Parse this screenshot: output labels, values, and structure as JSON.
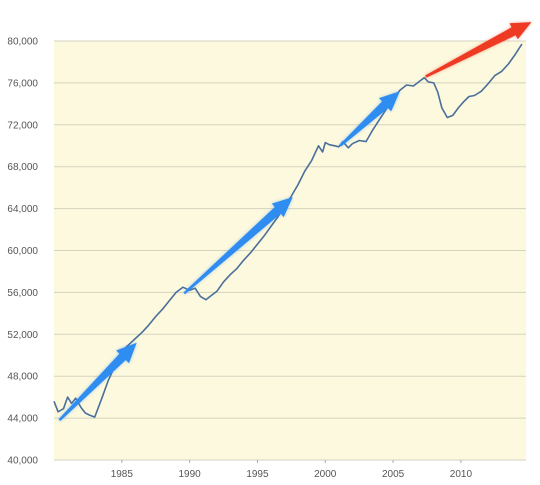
{
  "chart_data": {
    "type": "line",
    "title": "",
    "xlabel": "",
    "ylabel": "",
    "xlim": [
      1980.0,
      2014.8
    ],
    "ylim": [
      40000,
      80000
    ],
    "grid": true,
    "x_tick_labels": [
      "1985",
      "1990",
      "1995",
      "2000",
      "2005",
      "2010"
    ],
    "y_tick_labels": [
      "40,000",
      "44,000",
      "48,000",
      "52,000",
      "56,000",
      "60,000",
      "64,000",
      "68,000",
      "72,000",
      "76,000",
      "80,000"
    ],
    "series": [
      {
        "name": "",
        "x": [
          1980.0,
          1980.3,
          1980.7,
          1981.0,
          1981.3,
          1981.6,
          1982.0,
          1982.3,
          1982.6,
          1983.0,
          1983.5,
          1984.0,
          1984.5,
          1985.0,
          1985.5,
          1986.0,
          1986.5,
          1987.0,
          1987.5,
          1988.0,
          1988.5,
          1989.0,
          1989.5,
          1990.0,
          1990.4,
          1990.8,
          1991.2,
          1991.6,
          1992.0,
          1992.5,
          1993.0,
          1993.5,
          1994.0,
          1994.5,
          1995.0,
          1995.5,
          1996.0,
          1996.5,
          1997.0,
          1997.5,
          1998.0,
          1998.5,
          1999.0,
          1999.5,
          1999.8,
          2000.0,
          2000.3,
          2000.7,
          2001.0,
          2001.3,
          2001.7,
          2002.0,
          2002.5,
          2003.0,
          2003.5,
          2004.0,
          2004.5,
          2005.0,
          2005.5,
          2006.0,
          2006.5,
          2007.0,
          2007.3,
          2007.6,
          2008.0,
          2008.3,
          2008.6,
          2009.0,
          2009.4,
          2009.8,
          2010.2,
          2010.6,
          2011.0,
          2011.5,
          2012.0,
          2012.5,
          2013.0,
          2013.5,
          2014.0,
          2014.5
        ],
        "y": [
          45600,
          44600,
          44900,
          46000,
          45400,
          45900,
          45000,
          44500,
          44300,
          44100,
          45800,
          47600,
          49000,
          50400,
          51000,
          51600,
          52200,
          52900,
          53700,
          54400,
          55200,
          56000,
          56500,
          56200,
          56400,
          55600,
          55300,
          55700,
          56100,
          57000,
          57700,
          58300,
          59100,
          59800,
          60600,
          61400,
          62300,
          63200,
          64200,
          65200,
          66300,
          67600,
          68600,
          70000,
          69400,
          70300,
          70100,
          70000,
          69900,
          70400,
          69800,
          70200,
          70500,
          70400,
          71500,
          72500,
          73500,
          74500,
          75300,
          75800,
          75700,
          76200,
          76500,
          76100,
          76000,
          75100,
          73600,
          72700,
          72900,
          73600,
          74200,
          74700,
          74800,
          75200,
          75900,
          76700,
          77100,
          77800,
          78700,
          79700
        ]
      }
    ],
    "annotations": [
      {
        "type": "arrow",
        "color": "#2f8cf0",
        "from": [
          1980.4,
          43800
        ],
        "to": [
          1986.1,
          51200
        ]
      },
      {
        "type": "arrow",
        "color": "#2f8cf0",
        "from": [
          1989.6,
          55900
        ],
        "to": [
          1997.6,
          65100
        ]
      },
      {
        "type": "arrow",
        "color": "#2f8cf0",
        "from": [
          2001.1,
          70000
        ],
        "to": [
          2005.5,
          75200
        ]
      },
      {
        "type": "arrow",
        "color": "#ee3a22",
        "from": [
          2007.4,
          76600
        ],
        "to": [
          2015.2,
          81800
        ]
      }
    ],
    "colors": {
      "plot_background": "#fcf9de",
      "line": "#4a6f9a",
      "grid": "#d6d3c0"
    }
  }
}
